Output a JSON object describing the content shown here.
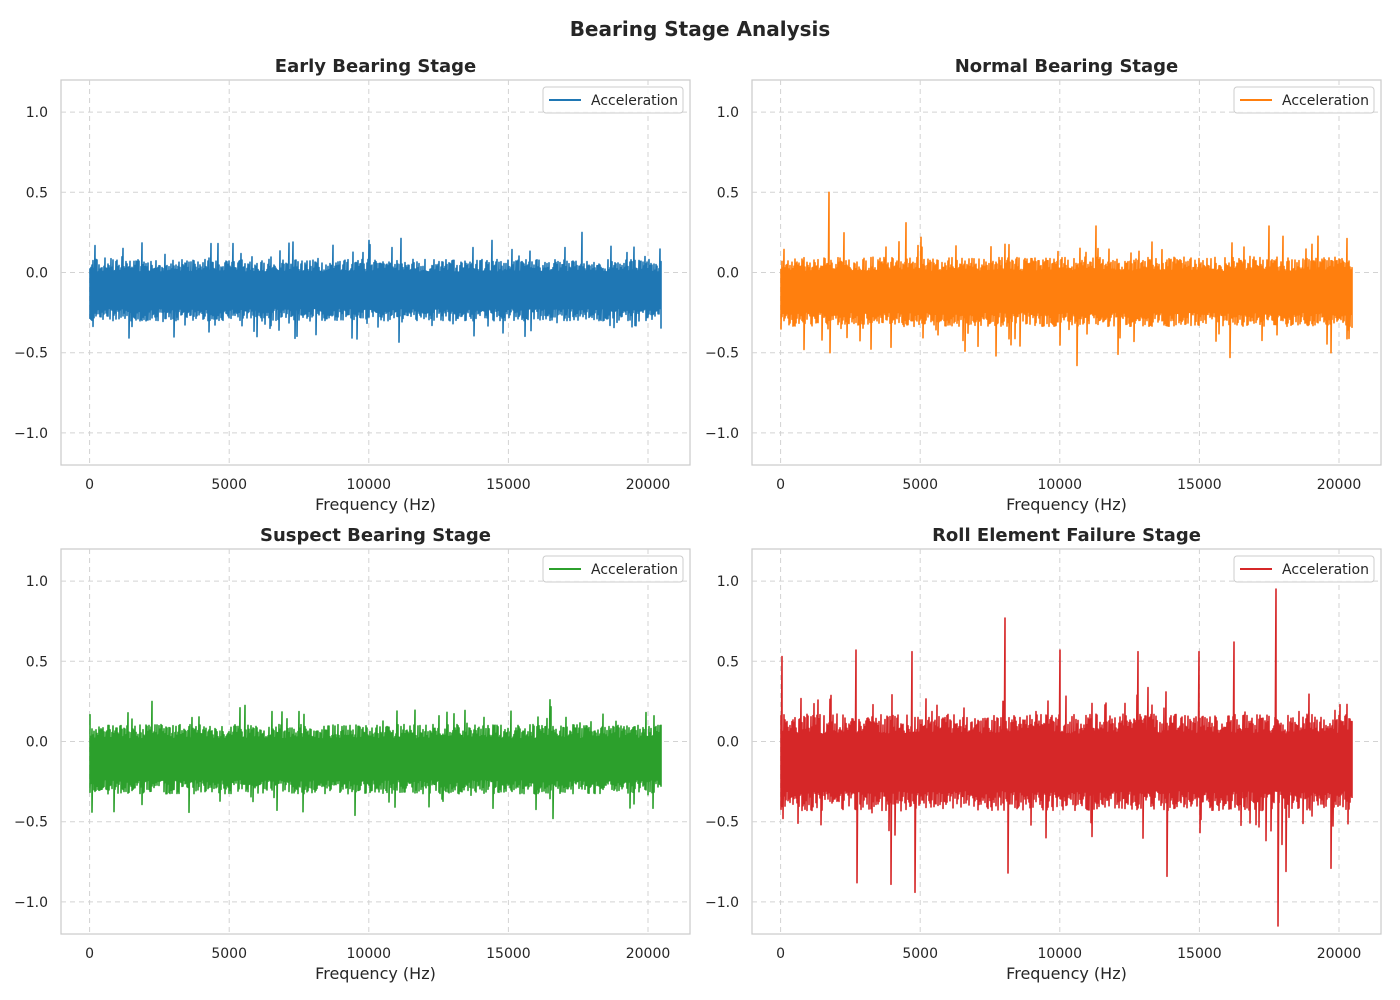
{
  "suptitle": "Bearing Stage Analysis",
  "chart_data": [
    {
      "type": "line",
      "title": "Early Bearing Stage",
      "xlabel": "Frequency (Hz)",
      "ylabel": "",
      "xlim": [
        -1024,
        21504
      ],
      "ylim": [
        -1.2,
        1.2
      ],
      "xticks": [
        0,
        5000,
        10000,
        15000,
        20000
      ],
      "xtick_labels": [
        "0",
        "5000",
        "10000",
        "15000",
        "20000"
      ],
      "yticks": [
        -1.0,
        -0.5,
        0.0,
        0.5,
        1.0
      ],
      "ytick_labels": [
        "−1.0",
        "−0.5",
        "0.0",
        "0.5",
        "1.0"
      ],
      "grid": true,
      "legend_position": "top-right",
      "series": [
        {
          "name": "Acceleration",
          "color": "#1f77b4",
          "x_range": [
            0,
            20480
          ],
          "baseline": -0.11,
          "envelope_low": -0.27,
          "envelope_high": 0.05,
          "spikes": [
            [
              1200,
              0.15
            ],
            [
              4600,
              0.18
            ],
            [
              7300,
              0.19
            ],
            [
              7350,
              -0.41
            ],
            [
              10000,
              0.2
            ],
            [
              12250,
              -0.33
            ],
            [
              14400,
              0.2
            ],
            [
              17650,
              0.25
            ],
            [
              18650,
              -0.33
            ],
            [
              20450,
              -0.35
            ]
          ]
        }
      ]
    },
    {
      "type": "line",
      "title": "Normal Bearing Stage",
      "xlabel": "Frequency (Hz)",
      "ylabel": "",
      "xlim": [
        -1024,
        21504
      ],
      "ylim": [
        -1.2,
        1.2
      ],
      "xticks": [
        0,
        5000,
        10000,
        15000,
        20000
      ],
      "xtick_labels": [
        "0",
        "5000",
        "10000",
        "15000",
        "20000"
      ],
      "yticks": [
        -1.0,
        -0.5,
        0.0,
        0.5,
        1.0
      ],
      "ytick_labels": [
        "−1.0",
        "−0.5",
        "0.0",
        "0.5",
        "1.0"
      ],
      "grid": true,
      "legend_position": "top-right",
      "series": [
        {
          "name": "Acceleration",
          "color": "#ff7f0e",
          "x_range": [
            0,
            20480
          ],
          "baseline": -0.12,
          "envelope_low": -0.3,
          "envelope_high": 0.06,
          "spikes": [
            [
              1750,
              0.5
            ],
            [
              1760,
              -0.5
            ],
            [
              4500,
              0.31
            ],
            [
              6600,
              -0.49
            ],
            [
              7700,
              -0.52
            ],
            [
              11300,
              0.29
            ],
            [
              10600,
              -0.58
            ],
            [
              12100,
              -0.51
            ],
            [
              16100,
              -0.53
            ],
            [
              17500,
              0.29
            ],
            [
              19700,
              -0.5
            ]
          ]
        }
      ]
    },
    {
      "type": "line",
      "title": "Suspect Bearing Stage",
      "xlabel": "Frequency (Hz)",
      "ylabel": "",
      "xlim": [
        -1024,
        21504
      ],
      "ylim": [
        -1.2,
        1.2
      ],
      "xticks": [
        0,
        5000,
        10000,
        15000,
        20000
      ],
      "xtick_labels": [
        "0",
        "5000",
        "10000",
        "15000",
        "20000"
      ],
      "yticks": [
        -1.0,
        -0.5,
        0.0,
        0.5,
        1.0
      ],
      "ytick_labels": [
        "−1.0",
        "−0.5",
        "0.0",
        "0.5",
        "1.0"
      ],
      "grid": true,
      "legend_position": "top-right",
      "series": [
        {
          "name": "Acceleration",
          "color": "#2ca02c",
          "x_range": [
            0,
            20480
          ],
          "baseline": -0.11,
          "envelope_low": -0.29,
          "envelope_high": 0.07,
          "spikes": [
            [
              2250,
              0.25
            ],
            [
              100,
              -0.44
            ],
            [
              9500,
              -0.46
            ],
            [
              11000,
              0.19
            ],
            [
              16500,
              0.26
            ],
            [
              16600,
              -0.48
            ],
            [
              20200,
              0.16
            ]
          ]
        }
      ]
    },
    {
      "type": "line",
      "title": "Roll Element Failure Stage",
      "xlabel": "Frequency (Hz)",
      "ylabel": "",
      "xlim": [
        -1024,
        21504
      ],
      "ylim": [
        -1.2,
        1.2
      ],
      "xticks": [
        0,
        5000,
        10000,
        15000,
        20000
      ],
      "xtick_labels": [
        "0",
        "5000",
        "10000",
        "15000",
        "20000"
      ],
      "yticks": [
        -1.0,
        -0.5,
        0.0,
        0.5,
        1.0
      ],
      "ytick_labels": [
        "−1.0",
        "−0.5",
        "0.0",
        "0.5",
        "1.0"
      ],
      "grid": true,
      "legend_position": "top-right",
      "series": [
        {
          "name": "Acceleration",
          "color": "#d62728",
          "x_range": [
            0,
            20480
          ],
          "baseline": -0.13,
          "envelope_low": -0.38,
          "envelope_high": 0.12,
          "spikes": [
            [
              50,
              0.53
            ],
            [
              100,
              -0.48
            ],
            [
              2700,
              0.57
            ],
            [
              2720,
              -0.88
            ],
            [
              3950,
              -0.89
            ],
            [
              4700,
              0.56
            ],
            [
              4800,
              -0.94
            ],
            [
              8050,
              0.77
            ],
            [
              8150,
              -0.82
            ],
            [
              10000,
              0.57
            ],
            [
              12800,
              0.56
            ],
            [
              13850,
              -0.84
            ],
            [
              15000,
              0.56
            ],
            [
              16250,
              0.62
            ],
            [
              17750,
              0.95
            ],
            [
              17800,
              -1.15
            ],
            [
              18100,
              -0.81
            ],
            [
              19700,
              -0.79
            ]
          ]
        }
      ]
    }
  ]
}
